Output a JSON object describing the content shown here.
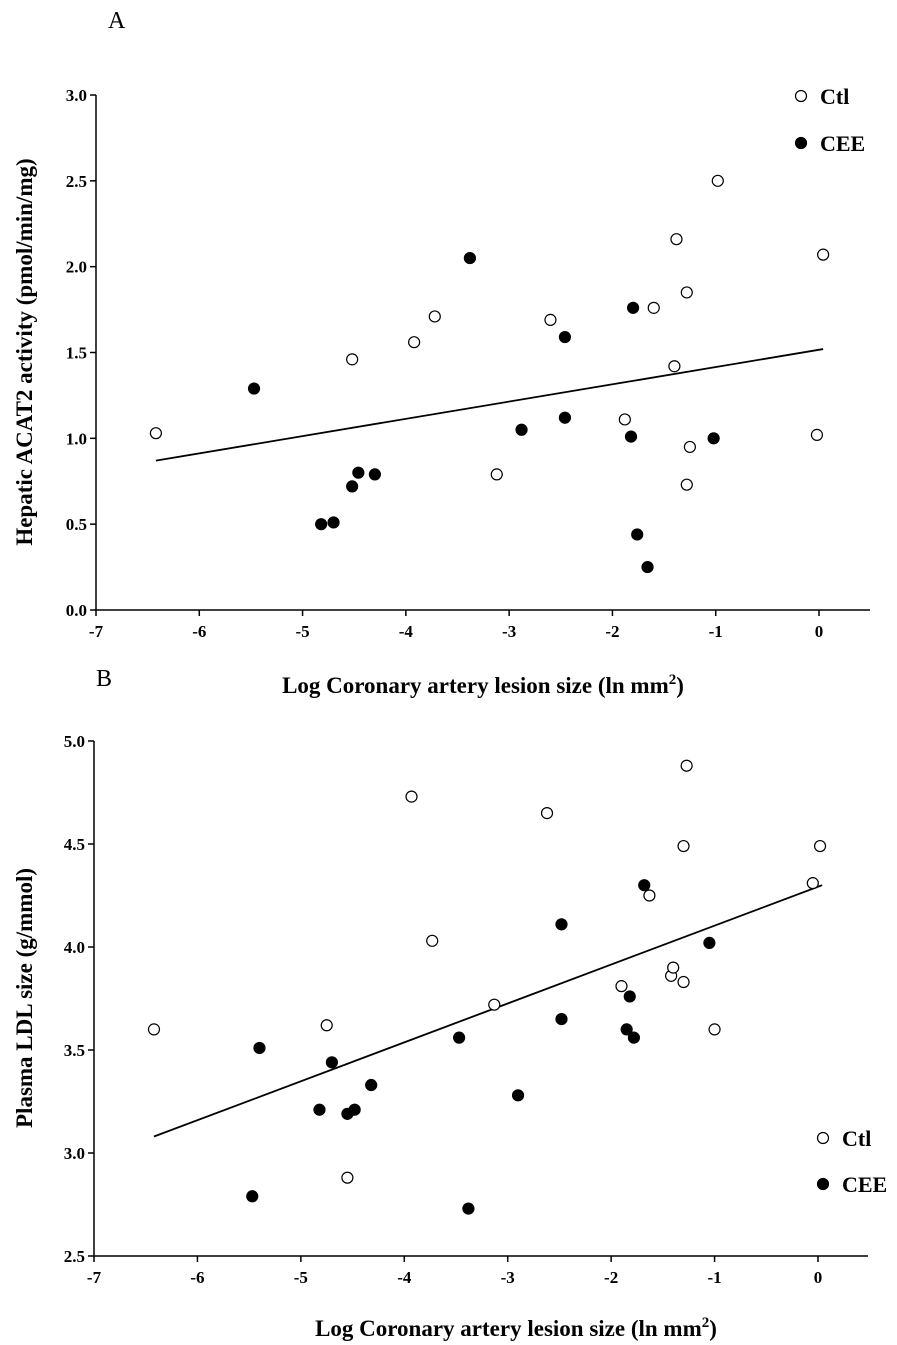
{
  "chart_data": [
    {
      "panel_label": "A",
      "type": "scatter",
      "xlabel": "Log Coronary artery lesion size (ln mm",
      "xlabel_sup": "2",
      "ylabel": "Hepatic ACAT2 activity  (pmol/min/mg)",
      "xlim": [
        -7,
        0.5
      ],
      "ylim": [
        0,
        3
      ],
      "xticks": [
        -7,
        -6,
        -5,
        -4,
        -3,
        -2,
        -1,
        0
      ],
      "yticks": [
        0,
        0.5,
        1,
        1.5,
        2,
        2.5,
        3
      ],
      "tick_labels_x": [
        "-7",
        "-6",
        "-5",
        "-4",
        "-3",
        "-2",
        "-1",
        "0"
      ],
      "tick_labels_y": [
        "0.0",
        "0.5",
        "1.0",
        "1.5",
        "2.0",
        "2.5",
        "3.0"
      ],
      "legend_position": "top-right",
      "grid": false,
      "series": [
        {
          "name": "Ctl",
          "marker": "open-circle",
          "points": [
            [
              -6.42,
              1.03
            ],
            [
              -4.52,
              1.46
            ],
            [
              -3.72,
              1.71
            ],
            [
              -3.92,
              1.56
            ],
            [
              -3.12,
              0.79
            ],
            [
              -2.6,
              1.69
            ],
            [
              -1.88,
              1.11
            ],
            [
              -1.6,
              1.76
            ],
            [
              -1.4,
              1.42
            ],
            [
              -1.38,
              2.16
            ],
            [
              -1.28,
              1.85
            ],
            [
              -1.25,
              0.95
            ],
            [
              -1.28,
              0.73
            ],
            [
              -0.98,
              2.5
            ],
            [
              0.04,
              2.07
            ],
            [
              -0.02,
              1.02
            ]
          ]
        },
        {
          "name": "CEE",
          "marker": "filled-circle",
          "points": [
            [
              -5.47,
              1.29
            ],
            [
              -4.82,
              0.5
            ],
            [
              -4.7,
              0.51
            ],
            [
              -4.52,
              0.72
            ],
            [
              -4.46,
              0.8
            ],
            [
              -4.3,
              0.79
            ],
            [
              -3.38,
              2.05
            ],
            [
              -2.88,
              1.05
            ],
            [
              -2.46,
              1.59
            ],
            [
              -2.46,
              1.12
            ],
            [
              -1.82,
              1.01
            ],
            [
              -1.8,
              1.76
            ],
            [
              -1.76,
              0.44
            ],
            [
              -1.66,
              0.25
            ],
            [
              -1.02,
              1.0
            ]
          ]
        }
      ],
      "fit_line": {
        "x": [
          -6.42,
          0.04
        ],
        "y": [
          0.87,
          1.52
        ]
      }
    },
    {
      "panel_label": "B",
      "type": "scatter",
      "xlabel": "Log Coronary artery lesion size (ln mm",
      "xlabel_sup": "2",
      "ylabel": "Plasma LDL size  (g/mmol)",
      "xlim": [
        -7,
        0.5
      ],
      "ylim": [
        2.5,
        5
      ],
      "xticks": [
        -7,
        -6,
        -5,
        -4,
        -3,
        -2,
        -1,
        0
      ],
      "yticks": [
        2.5,
        3,
        3.5,
        4,
        4.5,
        5
      ],
      "tick_labels_x": [
        "-7",
        "-6",
        "-5",
        "-4",
        "-3",
        "-2",
        "-1",
        "0"
      ],
      "tick_labels_y": [
        "2.5",
        "3.0",
        "3.5",
        "4.0",
        "4.5",
        "5.0"
      ],
      "legend_position": "bottom-right",
      "grid": false,
      "series": [
        {
          "name": "Ctl",
          "marker": "open-circle",
          "points": [
            [
              -6.42,
              3.6
            ],
            [
              -4.75,
              3.62
            ],
            [
              -4.55,
              2.88
            ],
            [
              -3.93,
              4.73
            ],
            [
              -3.73,
              4.03
            ],
            [
              -3.13,
              3.72
            ],
            [
              -2.62,
              4.65
            ],
            [
              -1.9,
              3.81
            ],
            [
              -1.63,
              4.25
            ],
            [
              -1.42,
              3.86
            ],
            [
              -1.4,
              3.9
            ],
            [
              -1.3,
              3.83
            ],
            [
              -1.3,
              4.49
            ],
            [
              -1.27,
              4.88
            ],
            [
              -1.0,
              3.6
            ],
            [
              -0.05,
              4.31
            ],
            [
              0.02,
              4.49
            ]
          ]
        },
        {
          "name": "CEE",
          "marker": "filled-circle",
          "points": [
            [
              -5.47,
              2.79
            ],
            [
              -5.4,
              3.51
            ],
            [
              -4.82,
              3.21
            ],
            [
              -4.7,
              3.44
            ],
            [
              -4.55,
              3.19
            ],
            [
              -4.48,
              3.21
            ],
            [
              -4.32,
              3.33
            ],
            [
              -3.47,
              3.56
            ],
            [
              -3.38,
              2.73
            ],
            [
              -2.9,
              3.28
            ],
            [
              -2.48,
              4.11
            ],
            [
              -2.48,
              3.65
            ],
            [
              -1.85,
              3.6
            ],
            [
              -1.82,
              3.76
            ],
            [
              -1.78,
              3.56
            ],
            [
              -1.68,
              4.3
            ],
            [
              -1.05,
              4.02
            ]
          ]
        }
      ],
      "fit_line": {
        "x": [
          -6.42,
          0.04
        ],
        "y": [
          3.08,
          4.3
        ]
      }
    }
  ]
}
